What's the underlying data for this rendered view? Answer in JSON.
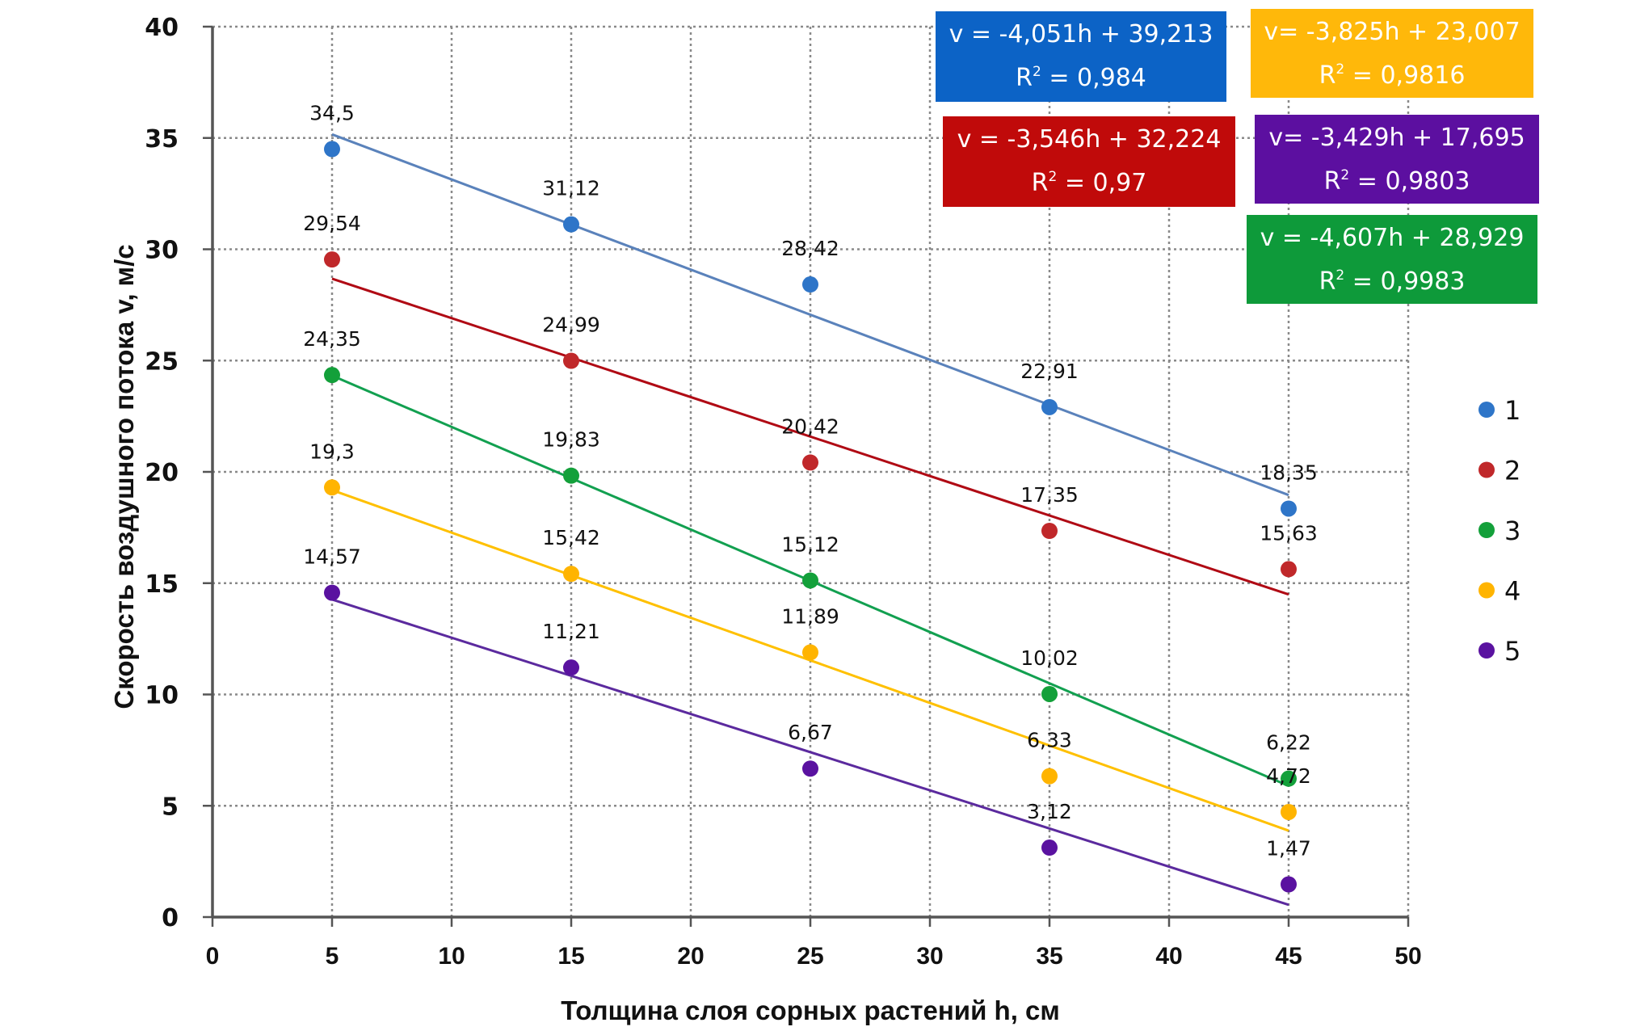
{
  "chart_data": {
    "type": "scatter",
    "title": "",
    "xlabel": "Толщина слоя сорных растений h, см",
    "ylabel": "Скорость воздушного потока  v, м/с",
    "xlim": [
      0,
      50
    ],
    "ylim": [
      0,
      40
    ],
    "xticks": [
      "0",
      "5",
      "10",
      "15",
      "20",
      "25",
      "30",
      "35",
      "40",
      "45",
      "50"
    ],
    "yticks": [
      "0",
      "5",
      "10",
      "15",
      "20",
      "25",
      "30",
      "35",
      "40"
    ],
    "grid": true,
    "legend_position": "right",
    "x": [
      5,
      15,
      25,
      35,
      45
    ],
    "series": [
      {
        "name": "1",
        "color": "#2e75c8",
        "trend_color": "#5a82bb",
        "values": [
          34.5,
          31.12,
          28.42,
          22.91,
          18.35
        ],
        "labels": [
          "34,5",
          "31,12",
          "28,42",
          "22,91",
          "18,35"
        ],
        "trendline": {
          "slope": -4.051,
          "intercept": 39.213,
          "r2": 0.984
        },
        "equation": "v = -4,051h  + 39,213",
        "r2_text": "R² = 0,984",
        "box_color": "#0c63c6"
      },
      {
        "name": "2",
        "color": "#c0282a",
        "trend_color": "#b00a14",
        "values": [
          29.54,
          24.99,
          20.42,
          17.35,
          15.63
        ],
        "labels": [
          "29,54",
          "24,99",
          "20,42",
          "17,35",
          "15,63"
        ],
        "trendline": {
          "slope": -3.546,
          "intercept": 32.224,
          "r2": 0.97
        },
        "equation": "v = -3,546h  + 32,224",
        "r2_text": "R² = 0,97",
        "box_color": "#c00a0a"
      },
      {
        "name": "3",
        "color": "#13a03a",
        "trend_color": "#12a050",
        "values": [
          24.35,
          19.83,
          15.12,
          10.02,
          6.22
        ],
        "labels": [
          "24,35",
          "19,83",
          "15,12",
          "10,02",
          "6,22"
        ],
        "trendline": {
          "slope": -4.607,
          "intercept": 28.929,
          "r2": 0.9983
        },
        "equation": "v = -4,607h  + 28,929",
        "r2_text": "R² = 0,9983",
        "box_color": "#0e9a3a"
      },
      {
        "name": "4",
        "color": "#ffb400",
        "trend_color": "#ffc000",
        "values": [
          19.3,
          15.42,
          11.89,
          6.33,
          4.72
        ],
        "labels": [
          "19,3",
          "15,42",
          "11,89",
          "6,33",
          "4,72"
        ],
        "trendline": {
          "slope": -3.825,
          "intercept": 23.007,
          "r2": 0.9816
        },
        "equation": "v= -3,825h  + 23,007",
        "r2_text": "R² = 0,9816",
        "box_color": "#ffb80a"
      },
      {
        "name": "5",
        "color": "#5a12a0",
        "trend_color": "#5b2a9e",
        "values": [
          14.57,
          11.21,
          6.67,
          3.12,
          1.47
        ],
        "labels": [
          "14,57",
          "11,21",
          "6,67",
          "3,12",
          "1,47"
        ],
        "trendline": {
          "slope": -3.429,
          "intercept": 17.695,
          "r2": 0.9803
        },
        "equation": "v= -3,429h  + 17,695",
        "r2_text": "R² = 0,9803",
        "box_color": "#5c0fa0"
      }
    ]
  }
}
